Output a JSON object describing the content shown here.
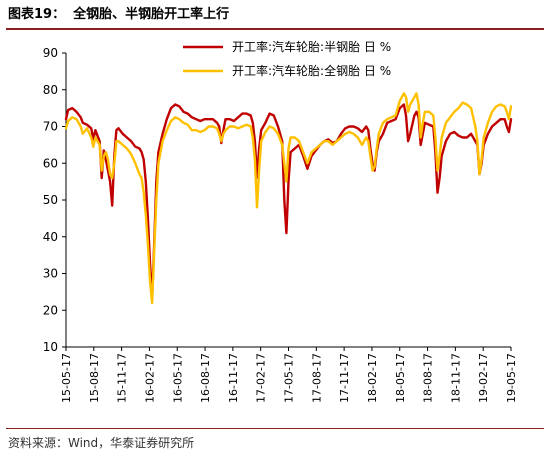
{
  "header": {
    "figure_number": "图表19：",
    "title": "全钢胎、半钢胎开工率上行"
  },
  "footer": {
    "source": "资料来源：Wind，华泰证券研究所"
  },
  "chart_data": {
    "type": "line",
    "title": "",
    "xlabel": "",
    "ylabel": "",
    "ylim": [
      10,
      90
    ],
    "yticks": [
      10,
      20,
      30,
      40,
      50,
      60,
      70,
      80,
      90
    ],
    "xticks": [
      "15-05-17",
      "15-08-17",
      "15-11-17",
      "16-02-17",
      "16-05-17",
      "16-08-17",
      "16-11-17",
      "17-02-17",
      "17-05-17",
      "17-08-17",
      "17-11-17",
      "18-02-17",
      "18-05-17",
      "18-08-17",
      "18-11-17",
      "19-02-17",
      "19-05-17"
    ],
    "x_range": [
      "2015-05-01",
      "2019-05-24"
    ],
    "legend_position": "top",
    "grid": false,
    "series": [
      {
        "name": "开工率:汽车轮胎:半钢胎 日 %",
        "color": "#c00000",
        "points": [
          [
            "2015-05-01",
            72
          ],
          [
            "2015-05-08",
            74.5
          ],
          [
            "2015-05-22",
            75
          ],
          [
            "2015-06-05",
            74
          ],
          [
            "2015-06-19",
            72.5
          ],
          [
            "2015-06-26",
            71
          ],
          [
            "2015-07-10",
            70.5
          ],
          [
            "2015-07-24",
            69.5
          ],
          [
            "2015-07-31",
            66.5
          ],
          [
            "2015-08-07",
            69
          ],
          [
            "2015-08-21",
            66
          ],
          [
            "2015-08-28",
            56
          ],
          [
            "2015-09-04",
            63.5
          ],
          [
            "2015-09-11",
            61
          ],
          [
            "2015-09-18",
            58
          ],
          [
            "2015-09-25",
            55
          ],
          [
            "2015-10-02",
            48.5
          ],
          [
            "2015-10-09",
            62
          ],
          [
            "2015-10-16",
            69
          ],
          [
            "2015-10-23",
            69.5
          ],
          [
            "2015-11-06",
            68
          ],
          [
            "2015-11-20",
            67
          ],
          [
            "2015-12-04",
            66
          ],
          [
            "2015-12-18",
            64.5
          ],
          [
            "2016-01-01",
            64
          ],
          [
            "2016-01-08",
            63
          ],
          [
            "2016-01-15",
            61
          ],
          [
            "2016-01-22",
            55
          ],
          [
            "2016-01-29",
            45
          ],
          [
            "2016-02-05",
            33
          ],
          [
            "2016-02-12",
            23
          ],
          [
            "2016-02-19",
            38
          ],
          [
            "2016-02-26",
            55
          ],
          [
            "2016-03-04",
            63
          ],
          [
            "2016-03-18",
            68
          ],
          [
            "2016-04-01",
            72
          ],
          [
            "2016-04-15",
            75
          ],
          [
            "2016-04-29",
            76
          ],
          [
            "2016-05-13",
            75.5
          ],
          [
            "2016-05-27",
            74
          ],
          [
            "2016-06-10",
            73.5
          ],
          [
            "2016-06-24",
            72.5
          ],
          [
            "2016-07-08",
            72
          ],
          [
            "2016-07-22",
            71.5
          ],
          [
            "2016-08-05",
            72
          ],
          [
            "2016-08-19",
            72
          ],
          [
            "2016-09-02",
            72
          ],
          [
            "2016-09-16",
            71
          ],
          [
            "2016-09-23",
            70
          ],
          [
            "2016-09-30",
            65.5
          ],
          [
            "2016-10-07",
            69
          ],
          [
            "2016-10-14",
            72
          ],
          [
            "2016-10-28",
            72
          ],
          [
            "2016-11-11",
            71.5
          ],
          [
            "2016-11-25",
            72.5
          ],
          [
            "2016-12-09",
            73.5
          ],
          [
            "2016-12-23",
            73.5
          ],
          [
            "2017-01-06",
            73
          ],
          [
            "2017-01-13",
            71
          ],
          [
            "2017-01-20",
            66
          ],
          [
            "2017-01-27",
            56
          ],
          [
            "2017-02-03",
            64
          ],
          [
            "2017-02-10",
            69
          ],
          [
            "2017-02-24",
            71
          ],
          [
            "2017-03-10",
            73.5
          ],
          [
            "2017-03-24",
            73
          ],
          [
            "2017-04-07",
            70
          ],
          [
            "2017-04-21",
            66
          ],
          [
            "2017-04-28",
            50
          ],
          [
            "2017-05-05",
            41
          ],
          [
            "2017-05-12",
            55
          ],
          [
            "2017-05-19",
            63
          ],
          [
            "2017-06-02",
            64
          ],
          [
            "2017-06-16",
            65
          ],
          [
            "2017-06-30",
            62
          ],
          [
            "2017-07-14",
            58.5
          ],
          [
            "2017-07-28",
            62
          ],
          [
            "2017-08-11",
            63.5
          ],
          [
            "2017-08-25",
            65
          ],
          [
            "2017-09-08",
            66
          ],
          [
            "2017-09-22",
            66.5
          ],
          [
            "2017-10-06",
            65.5
          ],
          [
            "2017-10-20",
            66
          ],
          [
            "2017-11-03",
            68
          ],
          [
            "2017-11-17",
            69.5
          ],
          [
            "2017-12-01",
            70
          ],
          [
            "2017-12-15",
            70
          ],
          [
            "2017-12-29",
            69.5
          ],
          [
            "2018-01-12",
            68.5
          ],
          [
            "2018-01-26",
            70
          ],
          [
            "2018-02-02",
            69
          ],
          [
            "2018-02-09",
            64
          ],
          [
            "2018-02-16",
            60
          ],
          [
            "2018-02-23",
            58
          ],
          [
            "2018-03-02",
            63
          ],
          [
            "2018-03-09",
            66
          ],
          [
            "2018-03-23",
            68
          ],
          [
            "2018-04-06",
            71
          ],
          [
            "2018-04-20",
            71.5
          ],
          [
            "2018-05-04",
            72
          ],
          [
            "2018-05-18",
            75
          ],
          [
            "2018-06-01",
            76
          ],
          [
            "2018-06-08",
            73
          ],
          [
            "2018-06-15",
            66
          ],
          [
            "2018-06-22",
            68
          ],
          [
            "2018-07-06",
            73
          ],
          [
            "2018-07-13",
            74
          ],
          [
            "2018-07-20",
            72.5
          ],
          [
            "2018-07-27",
            65
          ],
          [
            "2018-08-03",
            68
          ],
          [
            "2018-08-10",
            71
          ],
          [
            "2018-08-24",
            70.5
          ],
          [
            "2018-09-07",
            70
          ],
          [
            "2018-09-14",
            63
          ],
          [
            "2018-09-21",
            52
          ],
          [
            "2018-09-28",
            56
          ],
          [
            "2018-10-05",
            62
          ],
          [
            "2018-10-19",
            66
          ],
          [
            "2018-11-02",
            68
          ],
          [
            "2018-11-16",
            68.5
          ],
          [
            "2018-11-30",
            67.5
          ],
          [
            "2018-12-14",
            67
          ],
          [
            "2018-12-28",
            67
          ],
          [
            "2019-01-11",
            68
          ],
          [
            "2019-01-25",
            66
          ],
          [
            "2019-02-01",
            65
          ],
          [
            "2019-02-08",
            57
          ],
          [
            "2019-02-15",
            60
          ],
          [
            "2019-02-22",
            65
          ],
          [
            "2019-03-08",
            68
          ],
          [
            "2019-03-22",
            70
          ],
          [
            "2019-04-05",
            71
          ],
          [
            "2019-04-19",
            72
          ],
          [
            "2019-05-03",
            72
          ],
          [
            "2019-05-10",
            70
          ],
          [
            "2019-05-17",
            68.5
          ],
          [
            "2019-05-24",
            72
          ]
        ]
      },
      {
        "name": "开工率:汽车轮胎:全钢胎 日 %",
        "color": "#ffc000",
        "points": [
          [
            "2015-05-01",
            69.5
          ],
          [
            "2015-05-08",
            71.5
          ],
          [
            "2015-05-22",
            72.5
          ],
          [
            "2015-06-05",
            72
          ],
          [
            "2015-06-19",
            70
          ],
          [
            "2015-06-26",
            68
          ],
          [
            "2015-07-10",
            69.5
          ],
          [
            "2015-07-24",
            67
          ],
          [
            "2015-07-31",
            64.5
          ],
          [
            "2015-08-07",
            67
          ],
          [
            "2015-08-21",
            65
          ],
          [
            "2015-08-28",
            58
          ],
          [
            "2015-09-04",
            62
          ],
          [
            "2015-09-11",
            63
          ],
          [
            "2015-09-18",
            61
          ],
          [
            "2015-09-25",
            57
          ],
          [
            "2015-10-02",
            56
          ],
          [
            "2015-10-09",
            60
          ],
          [
            "2015-10-16",
            66
          ],
          [
            "2015-10-23",
            66
          ],
          [
            "2015-11-06",
            65
          ],
          [
            "2015-11-20",
            64
          ],
          [
            "2015-12-04",
            62.5
          ],
          [
            "2015-12-18",
            60
          ],
          [
            "2016-01-01",
            57
          ],
          [
            "2016-01-08",
            56
          ],
          [
            "2016-01-15",
            52
          ],
          [
            "2016-01-22",
            46
          ],
          [
            "2016-01-29",
            38
          ],
          [
            "2016-02-05",
            28
          ],
          [
            "2016-02-12",
            22
          ],
          [
            "2016-02-19",
            36
          ],
          [
            "2016-02-26",
            50
          ],
          [
            "2016-03-04",
            60
          ],
          [
            "2016-03-18",
            66
          ],
          [
            "2016-04-01",
            69
          ],
          [
            "2016-04-15",
            71.5
          ],
          [
            "2016-04-29",
            72.5
          ],
          [
            "2016-05-13",
            72
          ],
          [
            "2016-05-27",
            71
          ],
          [
            "2016-06-10",
            70.5
          ],
          [
            "2016-06-24",
            69
          ],
          [
            "2016-07-08",
            69
          ],
          [
            "2016-07-22",
            68.5
          ],
          [
            "2016-08-05",
            69
          ],
          [
            "2016-08-19",
            70
          ],
          [
            "2016-09-02",
            70
          ],
          [
            "2016-09-16",
            69.5
          ],
          [
            "2016-09-23",
            68
          ],
          [
            "2016-09-30",
            66
          ],
          [
            "2016-10-07",
            68
          ],
          [
            "2016-10-14",
            69
          ],
          [
            "2016-10-28",
            70
          ],
          [
            "2016-11-11",
            70
          ],
          [
            "2016-11-25",
            69.5
          ],
          [
            "2016-12-09",
            70
          ],
          [
            "2016-12-23",
            70.5
          ],
          [
            "2017-01-06",
            70
          ],
          [
            "2017-01-13",
            67
          ],
          [
            "2017-01-20",
            61
          ],
          [
            "2017-01-27",
            48
          ],
          [
            "2017-02-03",
            58
          ],
          [
            "2017-02-10",
            66
          ],
          [
            "2017-02-24",
            68.5
          ],
          [
            "2017-03-10",
            70
          ],
          [
            "2017-03-24",
            69.5
          ],
          [
            "2017-04-07",
            68
          ],
          [
            "2017-04-21",
            65
          ],
          [
            "2017-04-28",
            60
          ],
          [
            "2017-05-05",
            55
          ],
          [
            "2017-05-12",
            64
          ],
          [
            "2017-05-19",
            67
          ],
          [
            "2017-06-02",
            67
          ],
          [
            "2017-06-16",
            66
          ],
          [
            "2017-06-30",
            63
          ],
          [
            "2017-07-14",
            60
          ],
          [
            "2017-07-28",
            63
          ],
          [
            "2017-08-11",
            64
          ],
          [
            "2017-08-25",
            65
          ],
          [
            "2017-09-08",
            66
          ],
          [
            "2017-09-22",
            66
          ],
          [
            "2017-10-06",
            65
          ],
          [
            "2017-10-20",
            66
          ],
          [
            "2017-11-03",
            67
          ],
          [
            "2017-11-17",
            68
          ],
          [
            "2017-12-01",
            68.5
          ],
          [
            "2017-12-15",
            68
          ],
          [
            "2017-12-29",
            67
          ],
          [
            "2018-01-12",
            65
          ],
          [
            "2018-01-26",
            67
          ],
          [
            "2018-02-02",
            66
          ],
          [
            "2018-02-09",
            62
          ],
          [
            "2018-02-16",
            58
          ],
          [
            "2018-02-23",
            59
          ],
          [
            "2018-03-02",
            64
          ],
          [
            "2018-03-09",
            68
          ],
          [
            "2018-03-23",
            71
          ],
          [
            "2018-04-06",
            72
          ],
          [
            "2018-04-20",
            72.5
          ],
          [
            "2018-05-04",
            73
          ],
          [
            "2018-05-18",
            77
          ],
          [
            "2018-06-01",
            79
          ],
          [
            "2018-06-08",
            78
          ],
          [
            "2018-06-15",
            74
          ],
          [
            "2018-06-22",
            76
          ],
          [
            "2018-07-06",
            78
          ],
          [
            "2018-07-13",
            79
          ],
          [
            "2018-07-20",
            76
          ],
          [
            "2018-07-27",
            67
          ],
          [
            "2018-08-03",
            71
          ],
          [
            "2018-08-10",
            74
          ],
          [
            "2018-08-24",
            74
          ],
          [
            "2018-09-07",
            73
          ],
          [
            "2018-09-14",
            67
          ],
          [
            "2018-09-21",
            58
          ],
          [
            "2018-09-28",
            62
          ],
          [
            "2018-10-05",
            67
          ],
          [
            "2018-10-19",
            71
          ],
          [
            "2018-11-02",
            72.5
          ],
          [
            "2018-11-16",
            74
          ],
          [
            "2018-11-30",
            75
          ],
          [
            "2018-12-14",
            76.5
          ],
          [
            "2018-12-28",
            76
          ],
          [
            "2019-01-11",
            75
          ],
          [
            "2019-01-25",
            70
          ],
          [
            "2019-02-01",
            66
          ],
          [
            "2019-02-08",
            57
          ],
          [
            "2019-02-15",
            61
          ],
          [
            "2019-02-22",
            67
          ],
          [
            "2019-03-08",
            71
          ],
          [
            "2019-03-22",
            74
          ],
          [
            "2019-04-05",
            75.5
          ],
          [
            "2019-04-19",
            76
          ],
          [
            "2019-05-03",
            75.5
          ],
          [
            "2019-05-10",
            74
          ],
          [
            "2019-05-17",
            72
          ],
          [
            "2019-05-24",
            75.5
          ]
        ]
      }
    ]
  }
}
